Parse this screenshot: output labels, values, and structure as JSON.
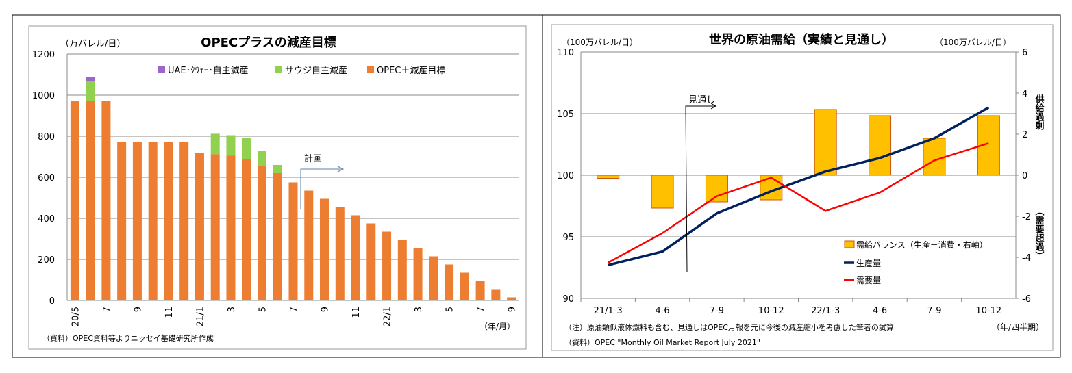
{
  "chart_data": [
    {
      "type": "bar",
      "stacked": true,
      "title": "OPECプラスの減産目標",
      "ylabel": "（万バレル/日）",
      "xlabel": "（年/月）",
      "ylim": [
        0,
        1200
      ],
      "yticks": [
        0,
        200,
        400,
        600,
        800,
        1000,
        1200
      ],
      "grid": true,
      "legend_position": "top",
      "categories": [
        "20/5",
        "6",
        "7",
        "8",
        "9",
        "10",
        "11",
        "12",
        "21/1",
        "2",
        "3",
        "4",
        "5",
        "6",
        "7",
        "8",
        "9",
        "10",
        "11",
        "12",
        "22/1",
        "2",
        "3",
        "4",
        "5",
        "6",
        "7",
        "8",
        "9"
      ],
      "tick_labels": [
        "20/5",
        "",
        "7",
        "",
        "9",
        "",
        "11",
        "",
        "21/1",
        "",
        "3",
        "",
        "5",
        "",
        "7",
        "",
        "9",
        "",
        "11",
        "",
        "22/1",
        "",
        "3",
        "",
        "5",
        "",
        "7",
        "",
        "9"
      ],
      "series": [
        {
          "name": "OPEC＋減産目標",
          "color": "#ED7D31",
          "values": [
            970,
            970,
            970,
            770,
            770,
            770,
            770,
            770,
            720,
            712,
            705,
            690,
            655,
            620,
            575,
            535,
            495,
            455,
            415,
            375,
            335,
            295,
            255,
            215,
            175,
            135,
            95,
            55,
            15
          ]
        },
        {
          "name": "サウジ自主減産",
          "color": "#92D050",
          "values": [
            0,
            100,
            0,
            0,
            0,
            0,
            0,
            0,
            0,
            100,
            100,
            100,
            75,
            40,
            0,
            0,
            0,
            0,
            0,
            0,
            0,
            0,
            0,
            0,
            0,
            0,
            0,
            0,
            0
          ]
        },
        {
          "name": "UAE･ｸｳｪｰﾄ自主減産",
          "color": "#9966CC",
          "values": [
            0,
            20,
            0,
            0,
            0,
            0,
            0,
            0,
            0,
            0,
            0,
            0,
            0,
            0,
            0,
            0,
            0,
            0,
            0,
            0,
            0,
            0,
            0,
            0,
            0,
            0,
            0,
            0,
            0
          ]
        }
      ],
      "annotations": [
        "計画"
      ],
      "source": "（資料）OPEC資料等よりニッセイ基礎研究所作成"
    },
    {
      "type": "bar+line",
      "title": "世界の原油需給（実績と見通し）",
      "ylabel_left": "（100万バレル/日）",
      "ylabel_right": "（100万バレル/日）",
      "xlabel": "（年/四半期）",
      "ylim_left": [
        90,
        110
      ],
      "yticks_left": [
        90,
        95,
        100,
        105,
        110
      ],
      "ylim_right": [
        -6,
        6
      ],
      "yticks_right": [
        -6,
        -4,
        -2,
        0,
        2,
        4,
        6
      ],
      "right_axis_labels": {
        "upper": "供給過剰",
        "lower": "（需要超過）",
        "color": "#FF0000"
      },
      "grid": true,
      "legend_position": "bottom-right",
      "categories": [
        "21/1-3",
        "4-6",
        "7-9",
        "10-12",
        "22/1-3",
        "4-6",
        "7-9",
        "10-12"
      ],
      "series": [
        {
          "name": "需給バランス（生産－消費・右軸）",
          "type": "bar",
          "axis": "right",
          "color": "#FFC000",
          "values": [
            -0.15,
            -1.6,
            -1.3,
            -1.2,
            3.2,
            2.9,
            1.8,
            2.9
          ]
        },
        {
          "name": "生産量",
          "type": "line",
          "axis": "left",
          "color": "#002060",
          "values": [
            92.7,
            93.8,
            96.9,
            98.7,
            100.3,
            101.4,
            103.0,
            105.5
          ]
        },
        {
          "name": "需要量",
          "type": "line",
          "axis": "left",
          "color": "#FF0000",
          "values": [
            92.9,
            95.3,
            98.3,
            99.8,
            97.1,
            98.6,
            101.2,
            102.6
          ]
        }
      ],
      "annotations": [
        "見通し"
      ],
      "note": "（注）原油類似液体燃料も含む、見通しはOPEC月報を元に今後の減産縮小を考慮した筆者の試算",
      "source": "（資料）OPEC \"Monthly Oil Market Report July 2021\""
    }
  ]
}
